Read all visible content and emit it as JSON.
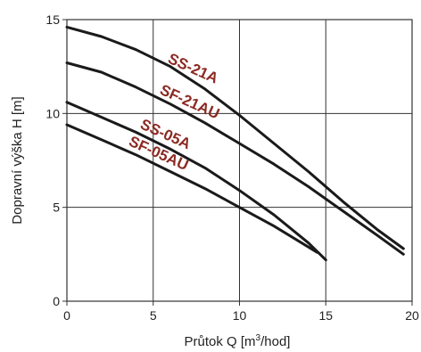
{
  "chart_data": {
    "type": "line",
    "xlabel": "Průtok Q [m³/hod]",
    "ylabel": "Dopravní výška H [m]",
    "xlim": [
      0,
      20
    ],
    "ylim": [
      0,
      15
    ],
    "x_ticks": [
      "0",
      "5",
      "10",
      "15",
      "20"
    ],
    "y_ticks": [
      "0",
      "5",
      "10",
      "15"
    ],
    "grid": true,
    "line_color": "#1a1a1a",
    "label_color": "#8b2a22",
    "series": [
      {
        "name": "SS-21A",
        "x": [
          0,
          2,
          4,
          6,
          8,
          10,
          12,
          14,
          16,
          18,
          19.5
        ],
        "y": [
          14.6,
          14.1,
          13.4,
          12.5,
          11.3,
          9.9,
          8.4,
          6.9,
          5.3,
          3.8,
          2.8
        ]
      },
      {
        "name": "SF-21AU",
        "x": [
          0,
          2,
          4,
          6,
          8,
          10,
          12,
          14,
          16,
          18,
          19.5
        ],
        "y": [
          12.7,
          12.2,
          11.4,
          10.5,
          9.5,
          8.4,
          7.3,
          6.1,
          4.8,
          3.5,
          2.5
        ]
      },
      {
        "name": "SS-05A",
        "x": [
          0,
          2,
          4,
          6,
          8,
          10,
          12,
          14,
          15
        ],
        "y": [
          10.6,
          9.8,
          9.0,
          8.1,
          7.1,
          5.9,
          4.6,
          3.1,
          2.2
        ]
      },
      {
        "name": "SF-05AU",
        "x": [
          0,
          2,
          4,
          6,
          8,
          10,
          12,
          14.5
        ],
        "y": [
          9.4,
          8.6,
          7.8,
          6.9,
          6.0,
          5.0,
          4.0,
          2.6
        ]
      }
    ]
  }
}
